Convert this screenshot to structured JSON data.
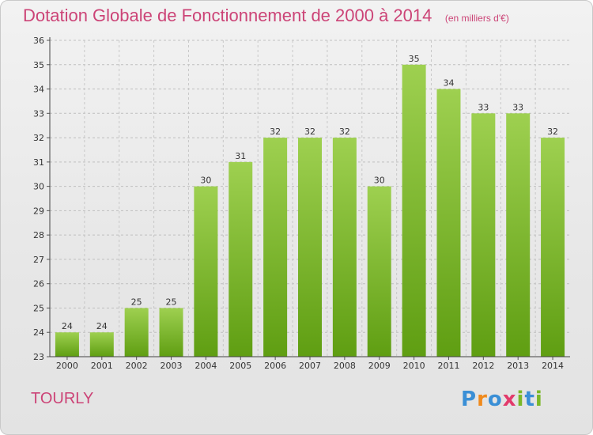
{
  "title": "Dotation Globale de Fonctionnement de 2000 à 2014",
  "unit": "(en milliers d'€)",
  "commune": "TOURLY",
  "logo": {
    "name": "Proxiti",
    "letters": [
      "P",
      "r",
      "o",
      "x",
      "i",
      "t",
      "i"
    ],
    "letter_colors": [
      "#3a8fd6",
      "#f08a1c",
      "#3a8fd6",
      "#e23a6b",
      "#7ab828",
      "#3a8fd6",
      "#7ab828"
    ]
  },
  "colors": {
    "title": "#cc4477",
    "bar_top": "#9ed050",
    "bar_bottom": "#5f9e12",
    "label": "#333333"
  },
  "chart_data": {
    "type": "bar",
    "title": "Dotation Globale de Fonctionnement de 2000 à 2014",
    "subtitle": "(en milliers d'€)",
    "xlabel": "",
    "ylabel": "",
    "categories": [
      "2000",
      "2001",
      "2002",
      "2003",
      "2004",
      "2005",
      "2006",
      "2007",
      "2008",
      "2009",
      "2010",
      "2011",
      "2012",
      "2013",
      "2014"
    ],
    "values": [
      24,
      24,
      25,
      25,
      30,
      31,
      32,
      32,
      32,
      30,
      35,
      34,
      33,
      33,
      32
    ],
    "data_labels": [
      "24",
      "24",
      "25",
      "25",
      "30",
      "31",
      "32",
      "32",
      "32",
      "30",
      "35",
      "34",
      "33",
      "33",
      "32"
    ],
    "ylim": [
      23,
      36
    ],
    "yticks": [
      "23",
      "24",
      "25",
      "26",
      "27",
      "28",
      "29",
      "30",
      "31",
      "32",
      "33",
      "34",
      "35",
      "36"
    ],
    "grid": true,
    "grid_style": "dashed",
    "legend": "none"
  }
}
